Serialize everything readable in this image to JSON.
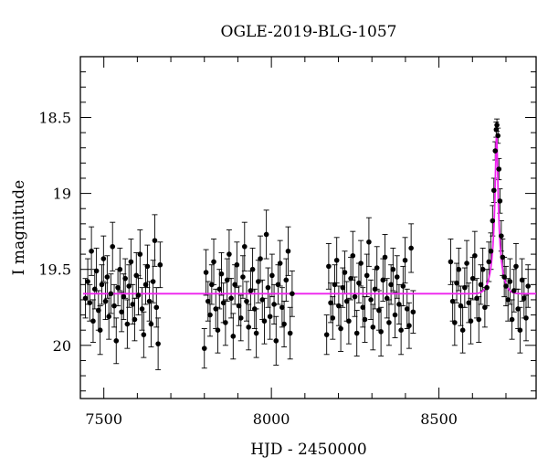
{
  "chart_data": {
    "type": "scatter",
    "title": "OGLE-2019-BLG-1057",
    "xlabel": "HJD - 2450000",
    "ylabel": "I magnitude",
    "xlim": [
      7430,
      8790
    ],
    "ylim": [
      20.35,
      18.1
    ],
    "y_inverted": true,
    "x_ticks": [
      {
        "value": 7500,
        "label": "7500"
      },
      {
        "value": 8000,
        "label": "8000"
      },
      {
        "value": 8500,
        "label": "8500"
      }
    ],
    "y_ticks": [
      {
        "value": 18.5,
        "label": "18.5"
      },
      {
        "value": 19,
        "label": "19"
      },
      {
        "value": 19.5,
        "label": "19.5"
      },
      {
        "value": 20,
        "label": "20"
      }
    ],
    "colors": {
      "data": "#000000",
      "model": "#ee22ee"
    },
    "baseline_mag": 19.66,
    "series": [
      {
        "points": [
          [
            7445,
            19.69,
            0.13
          ],
          [
            7452,
            19.58,
            0.15
          ],
          [
            7458,
            19.72,
            0.12
          ],
          [
            7463,
            19.38,
            0.16
          ],
          [
            7468,
            19.84,
            0.14
          ],
          [
            7473,
            19.63,
            0.13
          ],
          [
            7478,
            19.51,
            0.15
          ],
          [
            7484,
            19.77,
            0.13
          ],
          [
            7489,
            19.9,
            0.16
          ],
          [
            7494,
            19.6,
            0.13
          ],
          [
            7499,
            19.43,
            0.15
          ],
          [
            7505,
            19.71,
            0.12
          ],
          [
            7510,
            19.55,
            0.14
          ],
          [
            7515,
            19.81,
            0.15
          ],
          [
            7521,
            19.66,
            0.13
          ],
          [
            7526,
            19.35,
            0.16
          ],
          [
            7531,
            19.74,
            0.14
          ],
          [
            7537,
            19.97,
            0.15
          ],
          [
            7542,
            19.62,
            0.12
          ],
          [
            7548,
            19.5,
            0.14
          ],
          [
            7553,
            19.78,
            0.13
          ],
          [
            7559,
            19.68,
            0.15
          ],
          [
            7564,
            19.56,
            0.13
          ],
          [
            7570,
            19.86,
            0.16
          ],
          [
            7575,
            19.61,
            0.14
          ],
          [
            7581,
            19.45,
            0.15
          ],
          [
            7586,
            19.73,
            0.13
          ],
          [
            7592,
            19.83,
            0.14
          ],
          [
            7597,
            19.54,
            0.15
          ],
          [
            7603,
            19.67,
            0.13
          ],
          [
            7608,
            19.4,
            0.16
          ],
          [
            7614,
            19.76,
            0.14
          ],
          [
            7619,
            19.93,
            0.15
          ],
          [
            7625,
            19.6,
            0.13
          ],
          [
            7630,
            19.48,
            0.14
          ],
          [
            7636,
            19.71,
            0.13
          ],
          [
            7641,
            19.86,
            0.15
          ],
          [
            7647,
            19.58,
            0.14
          ],
          [
            7652,
            19.31,
            0.17
          ],
          [
            7657,
            19.75,
            0.13
          ],
          [
            7662,
            19.99,
            0.17
          ],
          [
            7668,
            19.47,
            0.15
          ],
          [
            7800,
            20.02,
            0.13
          ],
          [
            7805,
            19.52,
            0.15
          ],
          [
            7811,
            19.71,
            0.13
          ],
          [
            7817,
            19.8,
            0.14
          ],
          [
            7822,
            19.6,
            0.13
          ],
          [
            7828,
            19.45,
            0.15
          ],
          [
            7834,
            19.76,
            0.13
          ],
          [
            7840,
            19.9,
            0.15
          ],
          [
            7845,
            19.63,
            0.13
          ],
          [
            7851,
            19.53,
            0.14
          ],
          [
            7857,
            19.72,
            0.13
          ],
          [
            7863,
            19.85,
            0.15
          ],
          [
            7868,
            19.57,
            0.14
          ],
          [
            7874,
            19.4,
            0.16
          ],
          [
            7880,
            19.69,
            0.13
          ],
          [
            7886,
            19.94,
            0.15
          ],
          [
            7891,
            19.6,
            0.13
          ],
          [
            7897,
            19.47,
            0.15
          ],
          [
            7903,
            19.74,
            0.13
          ],
          [
            7909,
            19.82,
            0.15
          ],
          [
            7915,
            19.55,
            0.14
          ],
          [
            7920,
            19.35,
            0.16
          ],
          [
            7926,
            19.71,
            0.13
          ],
          [
            7932,
            19.88,
            0.15
          ],
          [
            7938,
            19.64,
            0.13
          ],
          [
            7944,
            19.5,
            0.14
          ],
          [
            7950,
            19.76,
            0.13
          ],
          [
            7955,
            19.92,
            0.16
          ],
          [
            7961,
            19.58,
            0.14
          ],
          [
            7967,
            19.43,
            0.15
          ],
          [
            7973,
            19.7,
            0.13
          ],
          [
            7979,
            19.84,
            0.15
          ],
          [
            7985,
            19.27,
            0.16
          ],
          [
            7990,
            19.62,
            0.13
          ],
          [
            7996,
            19.81,
            0.15
          ],
          [
            8002,
            19.54,
            0.14
          ],
          [
            8008,
            19.73,
            0.13
          ],
          [
            8014,
            19.97,
            0.16
          ],
          [
            8020,
            19.6,
            0.13
          ],
          [
            8026,
            19.46,
            0.15
          ],
          [
            8032,
            19.75,
            0.13
          ],
          [
            8038,
            19.86,
            0.15
          ],
          [
            8044,
            19.57,
            0.14
          ],
          [
            8050,
            19.38,
            0.16
          ],
          [
            8056,
            19.92,
            0.17
          ],
          [
            8062,
            19.66,
            0.15
          ],
          [
            8165,
            19.93,
            0.13
          ],
          [
            8171,
            19.48,
            0.15
          ],
          [
            8177,
            19.72,
            0.13
          ],
          [
            8183,
            19.82,
            0.14
          ],
          [
            8189,
            19.6,
            0.13
          ],
          [
            8195,
            19.44,
            0.15
          ],
          [
            8201,
            19.74,
            0.13
          ],
          [
            8207,
            19.89,
            0.15
          ],
          [
            8213,
            19.62,
            0.13
          ],
          [
            8219,
            19.52,
            0.14
          ],
          [
            8225,
            19.71,
            0.13
          ],
          [
            8231,
            19.84,
            0.15
          ],
          [
            8237,
            19.56,
            0.14
          ],
          [
            8243,
            19.41,
            0.16
          ],
          [
            8249,
            19.68,
            0.13
          ],
          [
            8255,
            19.92,
            0.15
          ],
          [
            8261,
            19.59,
            0.13
          ],
          [
            8267,
            19.46,
            0.15
          ],
          [
            8273,
            19.75,
            0.13
          ],
          [
            8279,
            19.83,
            0.15
          ],
          [
            8285,
            19.54,
            0.14
          ],
          [
            8291,
            19.32,
            0.16
          ],
          [
            8297,
            19.7,
            0.13
          ],
          [
            8303,
            19.88,
            0.15
          ],
          [
            8309,
            19.63,
            0.13
          ],
          [
            8315,
            19.49,
            0.14
          ],
          [
            8321,
            19.77,
            0.13
          ],
          [
            8327,
            19.91,
            0.16
          ],
          [
            8333,
            19.57,
            0.14
          ],
          [
            8339,
            19.42,
            0.15
          ],
          [
            8345,
            19.69,
            0.13
          ],
          [
            8351,
            19.85,
            0.15
          ],
          [
            8357,
            19.6,
            0.13
          ],
          [
            8363,
            19.5,
            0.14
          ],
          [
            8369,
            19.8,
            0.15
          ],
          [
            8375,
            19.55,
            0.14
          ],
          [
            8381,
            19.73,
            0.13
          ],
          [
            8387,
            19.9,
            0.16
          ],
          [
            8393,
            19.61,
            0.13
          ],
          [
            8399,
            19.44,
            0.15
          ],
          [
            8405,
            19.76,
            0.13
          ],
          [
            8411,
            19.87,
            0.15
          ],
          [
            8417,
            19.36,
            0.16
          ],
          [
            8423,
            19.78,
            0.14
          ],
          [
            8535,
            19.45,
            0.15
          ],
          [
            8541,
            19.71,
            0.13
          ],
          [
            8547,
            19.85,
            0.15
          ],
          [
            8553,
            19.59,
            0.13
          ],
          [
            8559,
            19.5,
            0.14
          ],
          [
            8565,
            19.74,
            0.13
          ],
          [
            8571,
            19.9,
            0.15
          ],
          [
            8577,
            19.62,
            0.13
          ],
          [
            8583,
            19.46,
            0.15
          ],
          [
            8589,
            19.72,
            0.13
          ],
          [
            8595,
            19.84,
            0.15
          ],
          [
            8601,
            19.56,
            0.14
          ],
          [
            8607,
            19.41,
            0.16
          ],
          [
            8613,
            19.69,
            0.13
          ],
          [
            8619,
            19.83,
            0.15
          ],
          [
            8625,
            19.6,
            0.13
          ],
          [
            8631,
            19.5,
            0.14
          ],
          [
            8637,
            19.75,
            0.13
          ],
          [
            8643,
            19.62,
            0.12
          ],
          [
            8649,
            19.45,
            0.13
          ],
          [
            8655,
            19.38,
            0.12
          ],
          [
            8660,
            19.18,
            0.1
          ],
          [
            8664,
            18.98,
            0.08
          ],
          [
            8668,
            18.72,
            0.06
          ],
          [
            8671,
            18.58,
            0.05
          ],
          [
            8673,
            18.55,
            0.04
          ],
          [
            8676,
            18.62,
            0.05
          ],
          [
            8679,
            18.84,
            0.07
          ],
          [
            8682,
            19.05,
            0.08
          ],
          [
            8686,
            19.28,
            0.1
          ],
          [
            8690,
            19.42,
            0.12
          ],
          [
            8695,
            19.55,
            0.13
          ],
          [
            8700,
            19.61,
            0.13
          ],
          [
            8706,
            19.7,
            0.14
          ],
          [
            8712,
            19.58,
            0.15
          ],
          [
            8718,
            19.83,
            0.13
          ],
          [
            8724,
            19.64,
            0.14
          ],
          [
            8730,
            19.48,
            0.15
          ],
          [
            8736,
            19.76,
            0.13
          ],
          [
            8742,
            19.9,
            0.15
          ],
          [
            8748,
            19.57,
            0.14
          ],
          [
            8754,
            19.69,
            0.13
          ],
          [
            8760,
            19.82,
            0.15
          ],
          [
            8766,
            19.61,
            0.14
          ]
        ]
      }
    ],
    "model": {
      "type": "line",
      "t0": 8672,
      "peak_mag": 18.62,
      "width": 12,
      "baseline": 19.66
    }
  }
}
